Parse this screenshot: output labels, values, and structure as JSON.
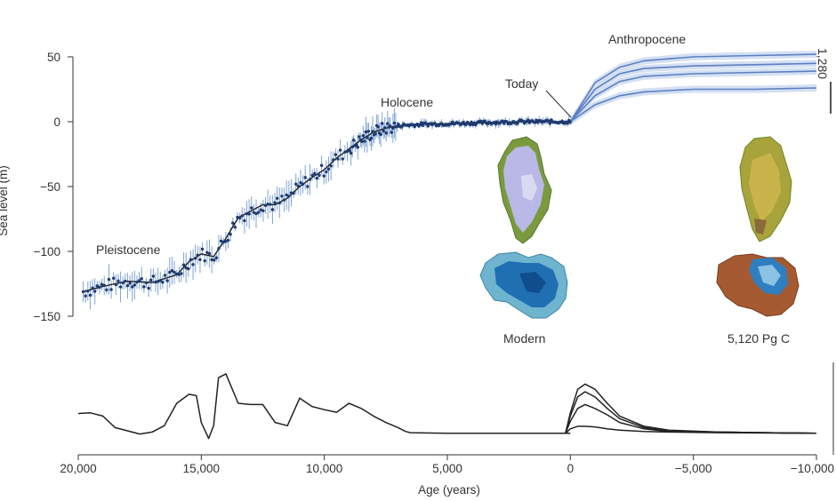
{
  "chart_data": [
    {
      "type": "line",
      "ylabel": "Sea level (m)",
      "yticks": [
        50,
        0,
        -50,
        -100,
        -150
      ],
      "ylim": [
        -155,
        55
      ],
      "xlim": [
        20000,
        -10000
      ],
      "annotations": {
        "pleistocene": "Pleistocene",
        "holocene": "Holocene",
        "today": "Today",
        "anthropocene": "Anthropocene",
        "modern": "Modern",
        "scenario": "5,120 Pg C",
        "right_edge": "1,280"
      },
      "colors": {
        "fit": "#222222",
        "data_points": "#1e3a6e",
        "error_bars": "#7fa3d6",
        "projection": "#5b7fc4",
        "projection_band": "#c9d8ef"
      },
      "series": [
        {
          "x": [
            19800,
            19000,
            18000,
            17000,
            16000,
            15500,
            15000,
            14500,
            14000,
            13500,
            13000,
            12500,
            12000,
            11500,
            11000,
            10500,
            10000,
            9500,
            9000,
            8500,
            8000,
            7500,
            7000,
            6000,
            5000,
            4000,
            3000,
            2000,
            1000,
            0
          ],
          "y": [
            -131,
            -127,
            -123,
            -124,
            -118,
            -108,
            -102,
            -104,
            -90,
            -74,
            -69,
            -64,
            -64,
            -59,
            -50,
            -43,
            -37,
            -28,
            -21,
            -14,
            -8,
            -5,
            -3,
            -2,
            -1.5,
            -1,
            -0.5,
            0,
            0,
            0
          ]
        }
      ],
      "projections": [
        {
          "x": [
            0,
            -1000,
            -2000,
            -3000,
            -5000,
            -7500,
            -10000
          ],
          "y": [
            0,
            30,
            42,
            47,
            50,
            51,
            52
          ]
        },
        {
          "x": [
            0,
            -1000,
            -2000,
            -3000,
            -5000,
            -7500,
            -10000
          ],
          "y": [
            0,
            25,
            37,
            41,
            43,
            44,
            45
          ]
        },
        {
          "x": [
            0,
            -1000,
            -2000,
            -3000,
            -5000,
            -7500,
            -10000
          ],
          "y": [
            0,
            20,
            31,
            35,
            37,
            38,
            39
          ]
        },
        {
          "x": [
            0,
            -1000,
            -2000,
            -3000,
            -5000,
            -7500,
            -10000
          ],
          "y": [
            0,
            13,
            20,
            23,
            25,
            25,
            26
          ]
        }
      ]
    },
    {
      "type": "line",
      "xlabel": "Age (years)",
      "xticks": [
        "20,000",
        "15,000",
        "10,000",
        "5,000",
        "0",
        "−5,000",
        "−10,000"
      ],
      "xlim": [
        20000,
        -10000
      ],
      "series": [
        {
          "x": [
            20000,
            19500,
            19000,
            18500,
            17500,
            17000,
            16500,
            16000,
            15500,
            15200,
            15000,
            14700,
            14500,
            14300,
            14000,
            13500,
            13000,
            12500,
            12000,
            11500,
            11000,
            10500,
            10000,
            9500,
            9000,
            8500,
            8000,
            7500,
            7000,
            6700,
            6500,
            5000,
            3000,
            1000,
            0
          ],
          "y": [
            0.34,
            0.35,
            0.3,
            0.12,
            0.02,
            0.05,
            0.15,
            0.5,
            0.64,
            0.62,
            0.2,
            -0.05,
            0.15,
            0.9,
            0.96,
            0.5,
            0.48,
            0.48,
            0.2,
            0.15,
            0.58,
            0.45,
            0.4,
            0.36,
            0.5,
            0.42,
            0.3,
            0.2,
            0.12,
            0.06,
            0.04,
            0.03,
            0.03,
            0.03,
            0.03
          ]
        },
        {
          "x": [
            200,
            0,
            -300,
            -600,
            -1000,
            -1500,
            -2000,
            -3000,
            -4000,
            -6000,
            -10000
          ],
          "y": [
            0.03,
            0.35,
            0.72,
            0.8,
            0.72,
            0.5,
            0.3,
            0.14,
            0.08,
            0.05,
            0.03
          ]
        },
        {
          "x": [
            200,
            0,
            -300,
            -600,
            -1000,
            -1500,
            -2000,
            -3000,
            -4000,
            -6000,
            -10000
          ],
          "y": [
            0.03,
            0.3,
            0.6,
            0.68,
            0.6,
            0.42,
            0.26,
            0.12,
            0.07,
            0.05,
            0.03
          ]
        },
        {
          "x": [
            200,
            0,
            -300,
            -600,
            -1000,
            -1500,
            -2000,
            -3000,
            -4000,
            -6000,
            -10000
          ],
          "y": [
            0.03,
            0.22,
            0.42,
            0.48,
            0.42,
            0.32,
            0.2,
            0.1,
            0.06,
            0.05,
            0.03
          ]
        },
        {
          "x": [
            200,
            0,
            -300,
            -600,
            -1000,
            -1500,
            -2000,
            -3000,
            -4000,
            -6000,
            -10000
          ],
          "y": [
            0.03,
            0.1,
            0.14,
            0.14,
            0.13,
            0.1,
            0.08,
            0.06,
            0.05,
            0.04,
            0.03
          ]
        }
      ]
    }
  ]
}
